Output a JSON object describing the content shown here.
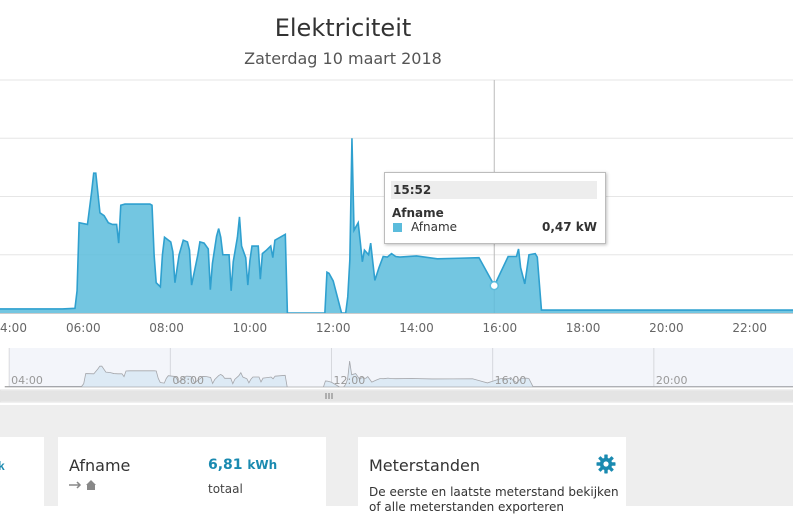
{
  "chart_data": {
    "type": "area",
    "title": "Elektriciteit",
    "subtitle": "Zaterdag 10 maart 2018",
    "x_ticks": [
      "4:00",
      "06:00",
      "08:00",
      "10:00",
      "12:00",
      "14:00",
      "16:00",
      "18:00",
      "20:00",
      "22:00"
    ],
    "navigator_ticks": [
      "04:00",
      "08:00",
      "12:00",
      "16:00",
      "20:00"
    ],
    "series": [
      {
        "name": "Afname",
        "unit": "kW",
        "color": "#5bbcdc",
        "x": [
          3.9,
          4.5,
          5.0,
          5.5,
          5.8,
          5.85,
          5.9,
          6.1,
          6.2,
          6.25,
          6.3,
          6.4,
          6.5,
          6.6,
          6.7,
          6.8,
          6.85,
          6.9,
          7.0,
          7.3,
          7.6,
          7.65,
          7.7,
          7.75,
          7.85,
          7.9,
          7.95,
          8.1,
          8.15,
          8.2,
          8.3,
          8.4,
          8.5,
          8.55,
          8.6,
          8.75,
          8.8,
          8.9,
          9.0,
          9.05,
          9.1,
          9.2,
          9.25,
          9.3,
          9.35,
          9.5,
          9.55,
          9.6,
          9.7,
          9.75,
          9.8,
          9.9,
          9.95,
          10.0,
          10.05,
          10.2,
          10.25,
          10.3,
          10.4,
          10.5,
          10.55,
          10.6,
          10.85,
          10.9,
          11.0,
          11.5,
          11.8,
          11.85,
          11.9,
          12.0,
          12.2,
          12.3,
          12.35,
          12.4,
          12.45,
          12.5,
          12.6,
          12.65,
          12.7,
          12.75,
          12.85,
          12.9,
          13.0,
          13.1,
          13.2,
          13.3,
          13.4,
          13.5,
          13.6,
          14.0,
          14.5,
          15.0,
          15.5,
          15.87,
          16.2,
          16.4,
          16.45,
          16.5,
          16.6,
          16.7,
          16.85,
          16.9,
          17.0,
          18.0,
          19.0,
          20.0,
          21.0,
          22.0,
          23.0,
          23.9
        ],
        "y": [
          0.07,
          0.07,
          0.07,
          0.07,
          0.08,
          0.38,
          1.55,
          1.52,
          2.08,
          2.4,
          2.4,
          1.72,
          1.67,
          1.55,
          1.52,
          1.52,
          1.2,
          1.85,
          1.87,
          1.87,
          1.87,
          1.85,
          1.0,
          0.52,
          0.45,
          1.0,
          1.3,
          1.22,
          1.05,
          0.52,
          1.0,
          1.25,
          1.22,
          1.08,
          0.48,
          1.0,
          1.22,
          1.2,
          1.1,
          0.4,
          0.85,
          1.32,
          1.45,
          1.3,
          1.0,
          1.0,
          0.38,
          0.88,
          1.3,
          1.65,
          1.15,
          0.95,
          0.48,
          0.9,
          1.15,
          1.15,
          0.58,
          1.02,
          1.08,
          1.15,
          0.95,
          1.25,
          1.35,
          0.0,
          0.0,
          0.0,
          0.0,
          0.7,
          0.68,
          0.55,
          0.0,
          0.0,
          0.28,
          0.92,
          3.0,
          1.42,
          1.55,
          1.22,
          0.88,
          1.08,
          1.0,
          1.2,
          0.56,
          0.78,
          0.97,
          0.96,
          1.02,
          0.97,
          0.96,
          0.98,
          0.93,
          0.94,
          0.95,
          0.47,
          0.97,
          0.97,
          1.1,
          0.78,
          0.5,
          1.0,
          1.02,
          0.96,
          0.05,
          0.05,
          0.05,
          0.05,
          0.05,
          0.05,
          0.05,
          0.05
        ]
      }
    ],
    "tooltip": {
      "time": "15:52",
      "series": "Afname",
      "label": "Afname",
      "value": "0,47 kW"
    }
  },
  "cards": {
    "left_partial_text": "k",
    "afname": {
      "title": "Afname",
      "value": "6,81",
      "unit": "kWh",
      "sub": "totaal",
      "icon": "arrow-to-home-icon"
    },
    "meterstanden": {
      "title": "Meterstanden",
      "icon": "gear-icon",
      "description": "De eerste en laatste meterstand bekijken of alle meterstanden exporteren"
    }
  },
  "colors": {
    "series": "#5bbcdc",
    "line": "#2fa0cf",
    "accent": "#1a8ab0"
  }
}
